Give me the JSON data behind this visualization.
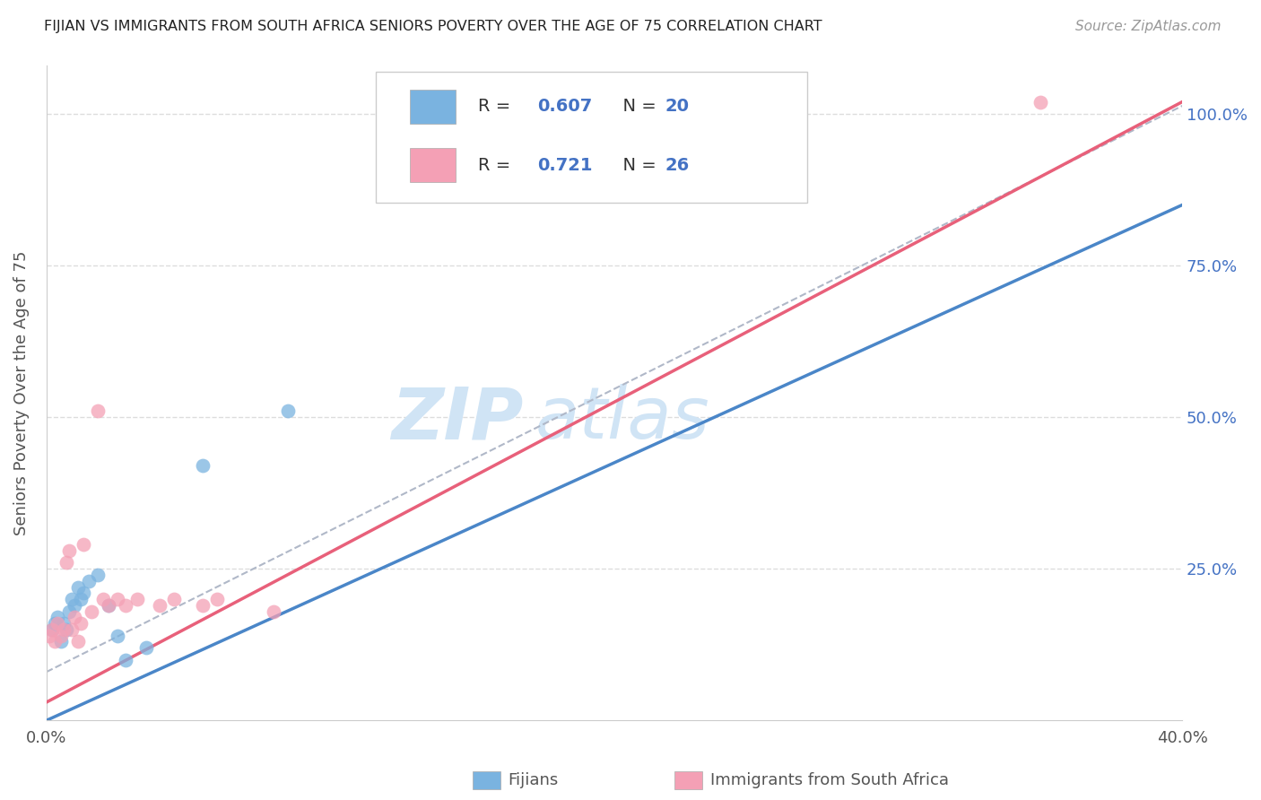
{
  "title": "FIJIAN VS IMMIGRANTS FROM SOUTH AFRICA SENIORS POVERTY OVER THE AGE OF 75 CORRELATION CHART",
  "source": "Source: ZipAtlas.com",
  "ylabel": "Seniors Poverty Over the Age of 75",
  "xlim": [
    0.0,
    0.4
  ],
  "ylim": [
    0.0,
    1.08
  ],
  "ytick_positions": [
    0.0,
    0.25,
    0.5,
    0.75,
    1.0
  ],
  "ytick_labels": [
    "",
    "25.0%",
    "50.0%",
    "75.0%",
    "100.0%"
  ],
  "xtick_positions": [
    0.0,
    0.1,
    0.2,
    0.3,
    0.4
  ],
  "xtick_labels": [
    "0.0%",
    "",
    "",
    "",
    "40.0%"
  ],
  "blue_color": "#7ab3e0",
  "pink_color": "#f4a0b5",
  "blue_line_color": "#4a86c8",
  "pink_line_color": "#e8607a",
  "blue_R": "0.607",
  "blue_N": "20",
  "pink_R": "0.721",
  "pink_N": "26",
  "fijian_x": [
    0.002,
    0.003,
    0.004,
    0.005,
    0.006,
    0.007,
    0.008,
    0.009,
    0.01,
    0.011,
    0.012,
    0.013,
    0.015,
    0.018,
    0.022,
    0.025,
    0.028,
    0.035,
    0.055,
    0.085
  ],
  "fijian_y": [
    0.15,
    0.16,
    0.17,
    0.13,
    0.16,
    0.15,
    0.18,
    0.2,
    0.19,
    0.22,
    0.2,
    0.21,
    0.23,
    0.24,
    0.19,
    0.14,
    0.1,
    0.12,
    0.42,
    0.51
  ],
  "sa_x": [
    0.001,
    0.002,
    0.003,
    0.004,
    0.005,
    0.006,
    0.007,
    0.008,
    0.009,
    0.01,
    0.011,
    0.012,
    0.013,
    0.016,
    0.018,
    0.02,
    0.022,
    0.025,
    0.028,
    0.032,
    0.04,
    0.045,
    0.055,
    0.06,
    0.08,
    0.35
  ],
  "sa_y": [
    0.14,
    0.15,
    0.13,
    0.16,
    0.14,
    0.15,
    0.26,
    0.28,
    0.15,
    0.17,
    0.13,
    0.16,
    0.29,
    0.18,
    0.51,
    0.2,
    0.19,
    0.2,
    0.19,
    0.2,
    0.19,
    0.2,
    0.19,
    0.2,
    0.18,
    1.02
  ],
  "background_color": "#ffffff",
  "grid_color": "#dddddd",
  "title_color": "#222222",
  "watermark_text": "ZIP",
  "watermark_text2": "atlas",
  "watermark_color": "#d0e4f5"
}
